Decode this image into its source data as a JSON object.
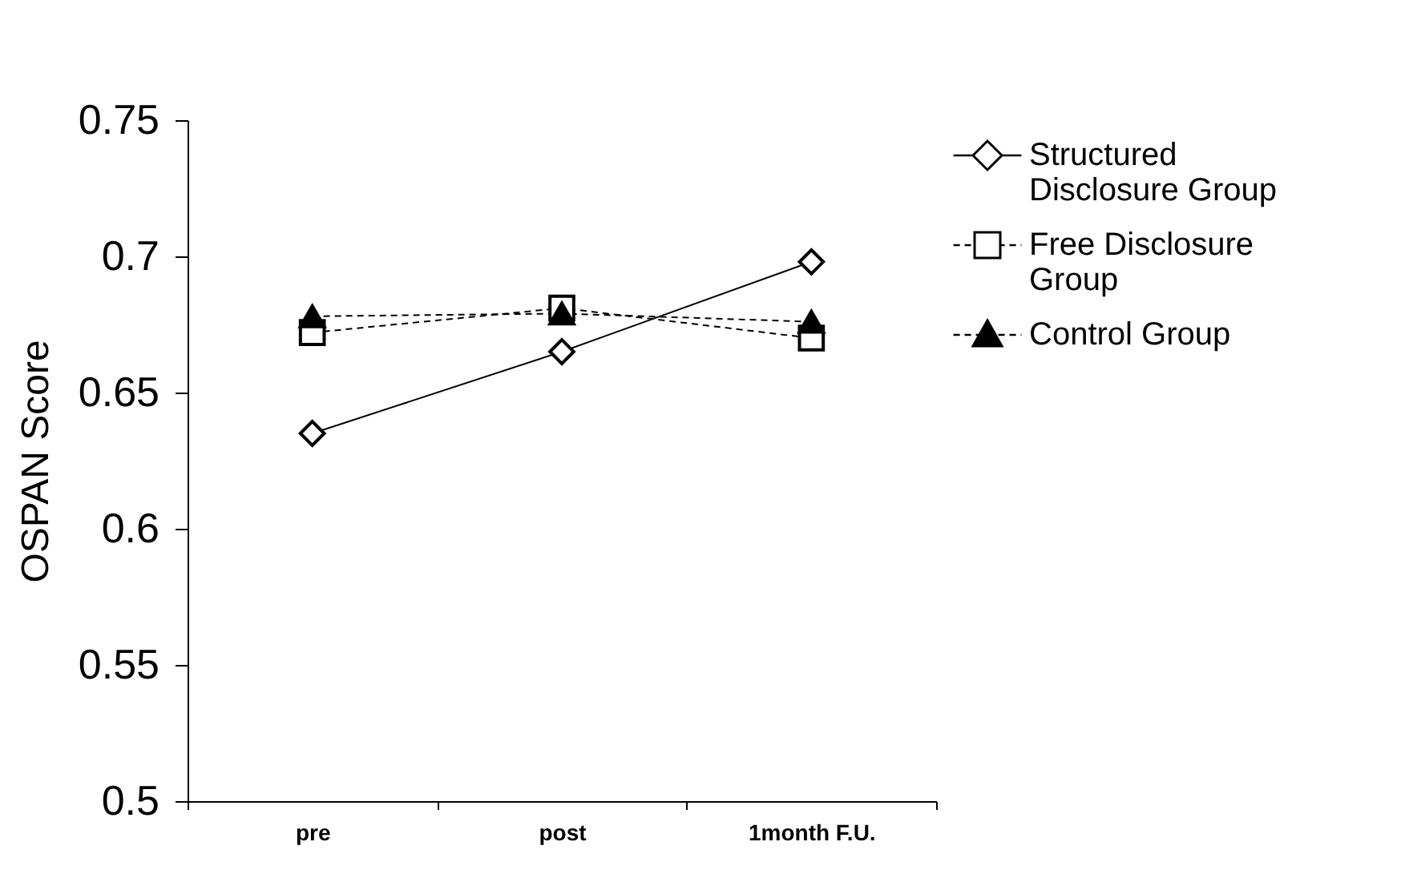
{
  "chart_data": {
    "type": "line",
    "ylabel": "OSPAN Score",
    "categories": [
      "pre",
      "post",
      "1month F.U."
    ],
    "series": [
      {
        "name": "Structured Disclosure Group",
        "color": "#000000",
        "marker": "diamond",
        "line_style": "solid",
        "values": [
          0.635,
          0.665,
          0.698
        ]
      },
      {
        "name": "Free Disclosure Group",
        "color": "#000000",
        "marker": "square",
        "line_style": "dashed",
        "values": [
          0.672,
          0.681,
          0.67
        ]
      },
      {
        "name": "Control Group",
        "color": "#000000",
        "marker": "triangle",
        "line_style": "dashed",
        "values": [
          0.678,
          0.679,
          0.676
        ]
      }
    ],
    "ylim": [
      0.5,
      0.75
    ],
    "yticks": [
      0.5,
      0.55,
      0.6,
      0.65,
      0.7,
      0.75
    ],
    "grid": false,
    "legend": "top right"
  }
}
